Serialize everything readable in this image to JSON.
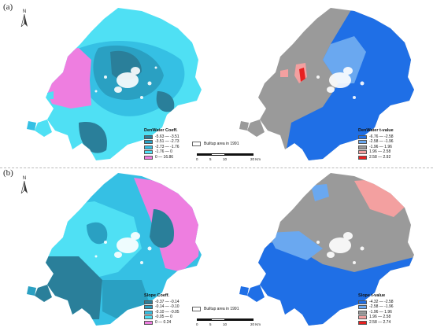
{
  "panels": [
    {
      "label": "(a)",
      "coef_legend": {
        "title": "DenWater Coeff.",
        "items": [
          {
            "label": "-5.63 — -3.51",
            "color": "#2a7f9a"
          },
          {
            "label": "-3.51 — -2.73",
            "color": "#2aa0c2"
          },
          {
            "label": "-2.73 — -1.76",
            "color": "#35c0e4"
          },
          {
            "label": "-1.76 — 0",
            "color": "#4fe0f4"
          },
          {
            "label": "0 — 16.86",
            "color": "#ee7ee0"
          }
        ]
      },
      "tvalue_legend": {
        "title": "DenWater t-value",
        "items": [
          {
            "label": "-6.76 — -2.58",
            "color": "#1f6fe6"
          },
          {
            "label": "-2.58 — -1.96",
            "color": "#6aa8f0"
          },
          {
            "label": "-1.96 — 1.96",
            "color": "#9a9a9a"
          },
          {
            "label": "1.96 — 2.58",
            "color": "#f3a0a0"
          },
          {
            "label": "2.58 — 2.92",
            "color": "#e82020"
          }
        ]
      }
    },
    {
      "label": "(b)",
      "coef_legend": {
        "title": "Slope Coeff.",
        "items": [
          {
            "label": "-0.37 — -0.14",
            "color": "#2a7f9a"
          },
          {
            "label": "-0.14 — -0.10",
            "color": "#2aa0c2"
          },
          {
            "label": "-0.10 — -0.05",
            "color": "#35c0e4"
          },
          {
            "label": "-0.05 — 0",
            "color": "#4fe0f4"
          },
          {
            "label": "0 — 0.24",
            "color": "#ee7ee0"
          }
        ]
      },
      "tvalue_legend": {
        "title": "Slope t-value",
        "items": [
          {
            "label": "-4.32 — -2.58",
            "color": "#1f6fe6"
          },
          {
            "label": "-2.58 — -1.96",
            "color": "#6aa8f0"
          },
          {
            "label": "-1.96 — 1.96",
            "color": "#9a9a9a"
          },
          {
            "label": "1.96 — 2.58",
            "color": "#f3a0a0"
          },
          {
            "label": "2.58 — 2.74",
            "color": "#e82020"
          }
        ]
      }
    }
  ],
  "builtup_label": "Builtup area in 1991",
  "scale": {
    "ticks": [
      "0",
      "5",
      "10",
      "20 Km"
    ]
  },
  "north_label": "N"
}
